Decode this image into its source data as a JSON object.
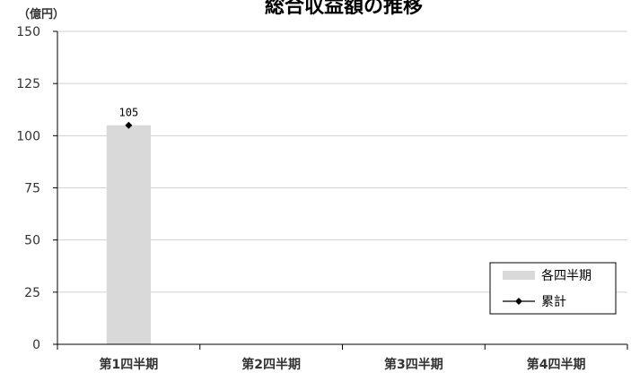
{
  "chart_data": {
    "type": "bar",
    "title": "総合収益額の推移",
    "unit_label": "（億円）",
    "categories": [
      "第1四半期",
      "第2四半期",
      "第3四半期",
      "第4四半期"
    ],
    "series": [
      {
        "name": "各四半期",
        "type": "bar",
        "color": "#d9d9d9",
        "values": [
          105,
          null,
          null,
          null
        ]
      },
      {
        "name": "累計",
        "type": "line",
        "color": "#000000",
        "marker": "diamond",
        "values": [
          105,
          null,
          null,
          null
        ]
      }
    ],
    "data_labels": [
      "105",
      null,
      null,
      null
    ],
    "y_ticks": [
      0,
      25,
      50,
      75,
      100,
      125,
      150
    ],
    "ylim": [
      0,
      150
    ],
    "grid": true,
    "legend_position": "bottom-right"
  }
}
